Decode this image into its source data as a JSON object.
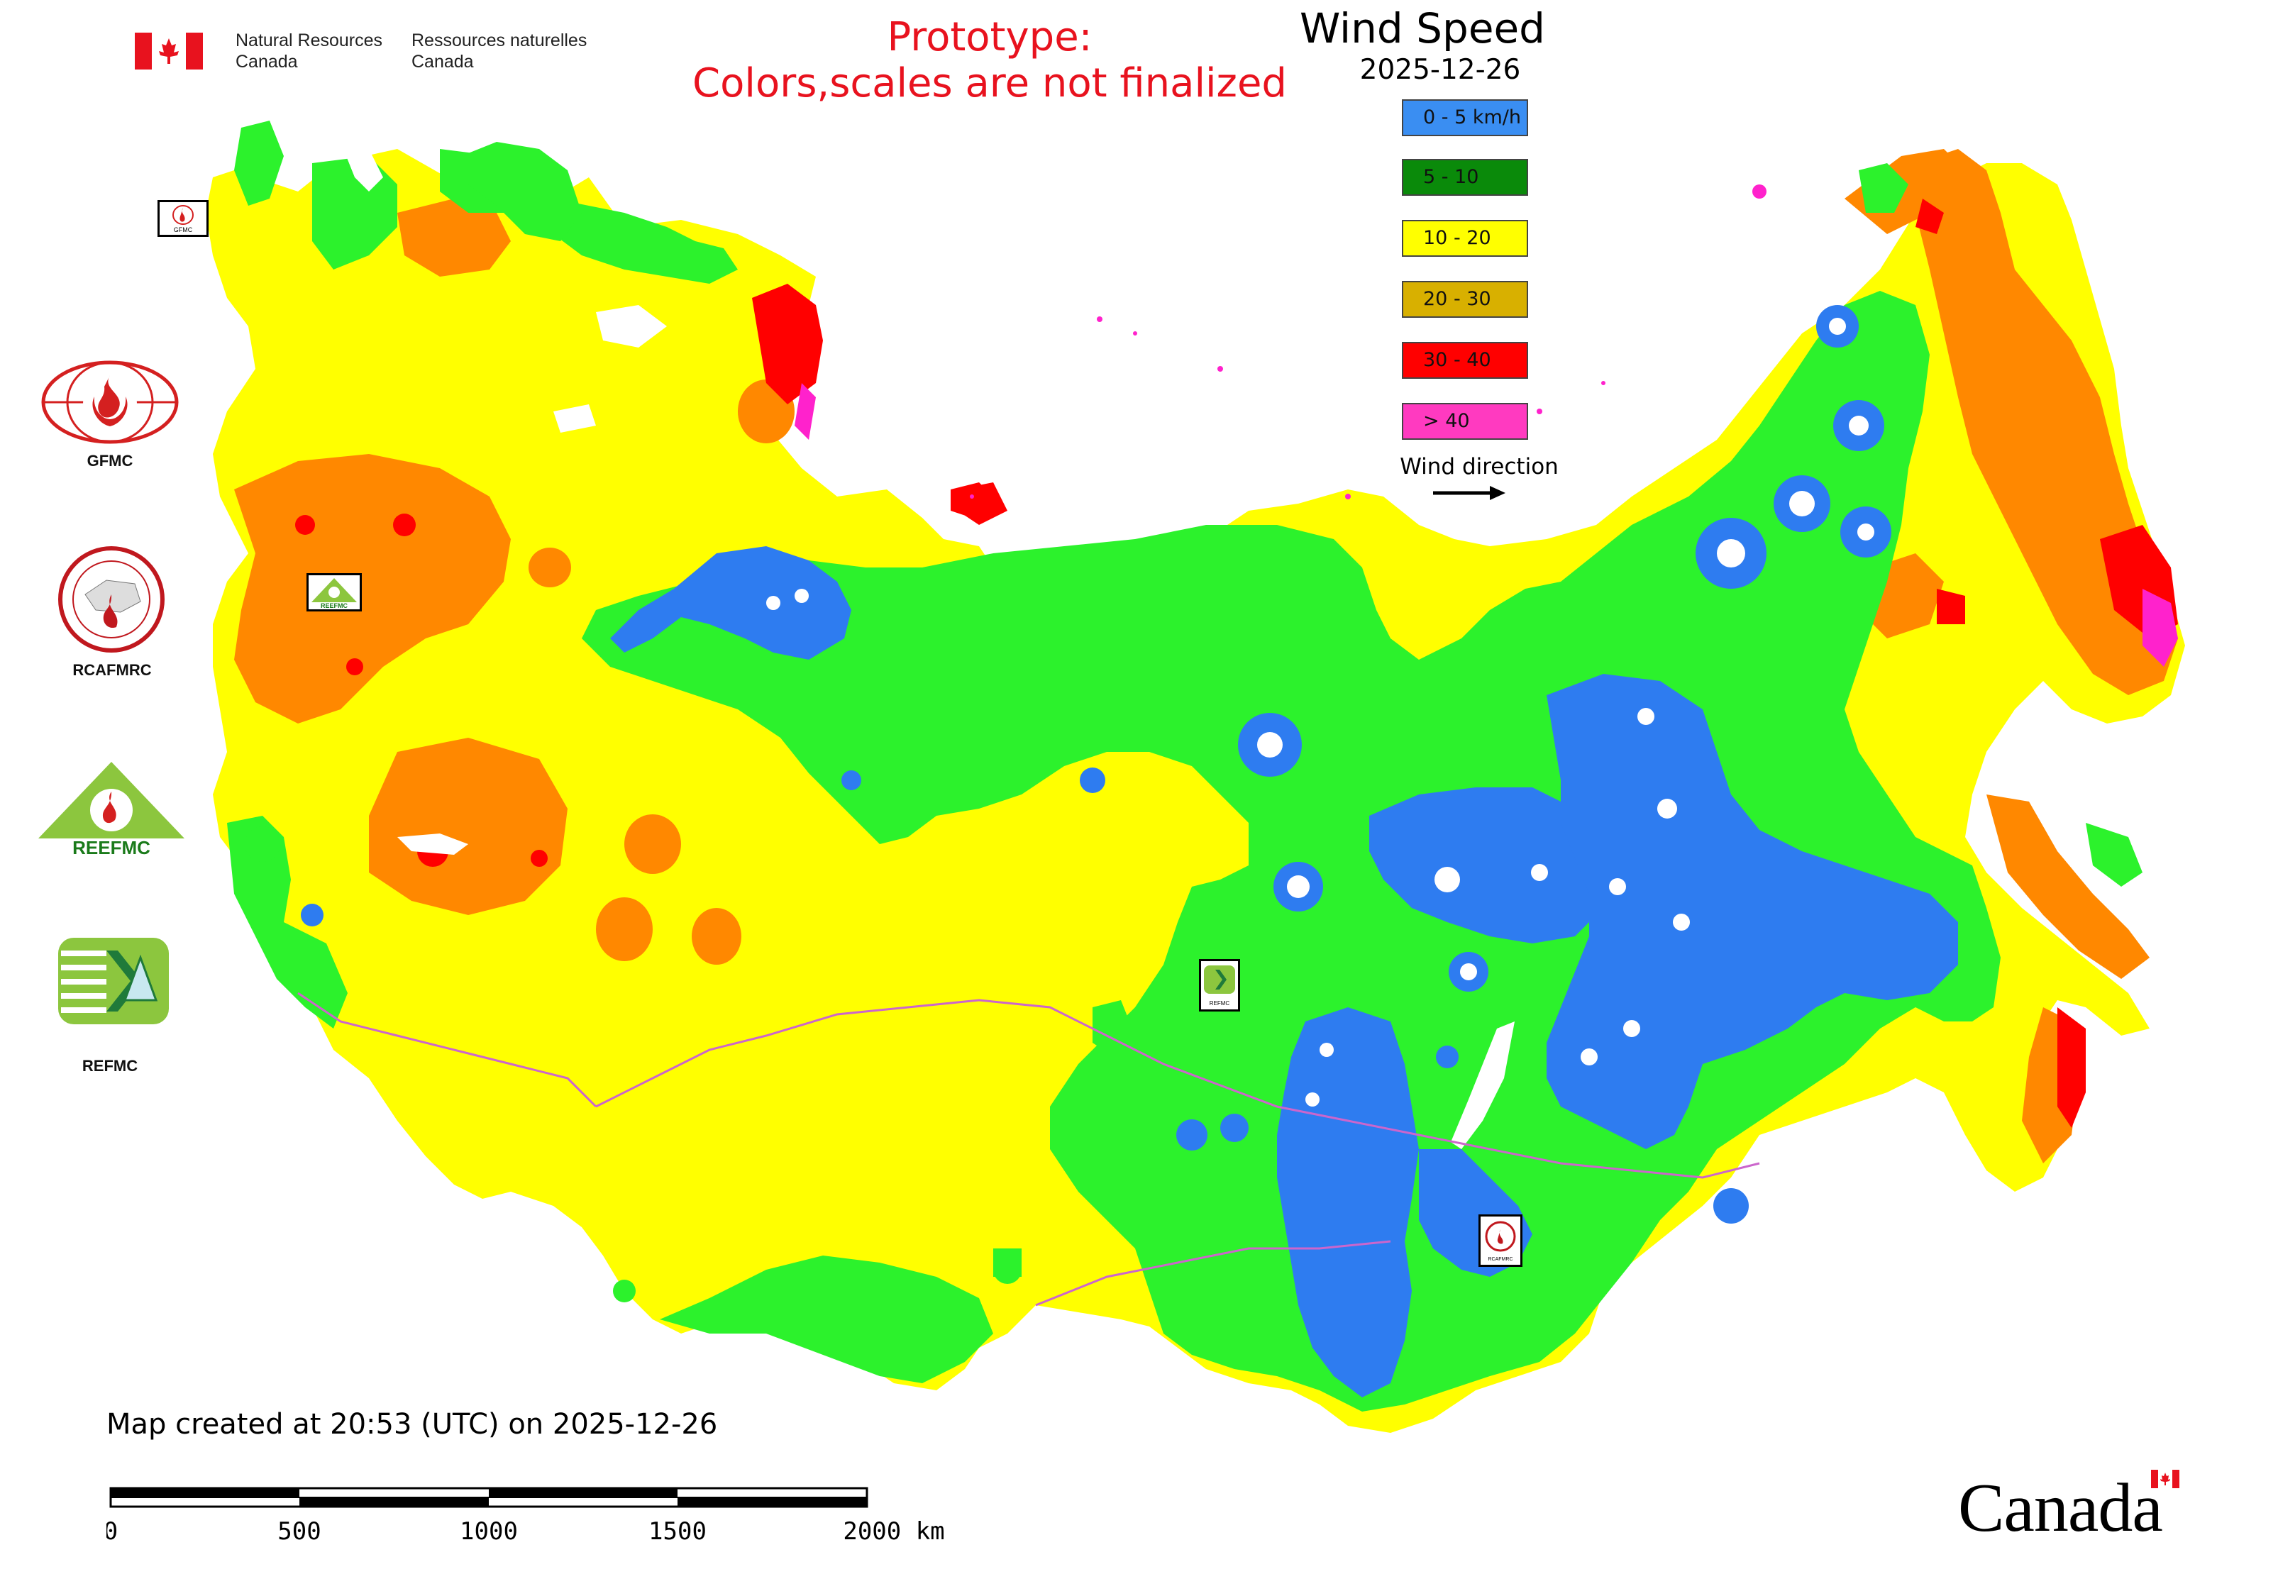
{
  "header": {
    "agency_en_line1": "Natural Resources",
    "agency_en_line2": "Canada",
    "agency_fr_line1": "Ressources naturelles",
    "agency_fr_line2": "Canada",
    "prototype_line1": "Prototype:",
    "prototype_line2": "Colors,scales are not finalized"
  },
  "legend": {
    "title": "Wind Speed",
    "date": "2025-12-26",
    "items": [
      {
        "label": "0 - 5 km/h",
        "color": "#3a8ef2"
      },
      {
        "label": "5 - 10",
        "color": "#0a8a0a"
      },
      {
        "label": "10 - 20",
        "color": "#ffff00"
      },
      {
        "label": "20 - 30",
        "color": "#d8b000"
      },
      {
        "label": "30 - 40",
        "color": "#ff0000"
      },
      {
        "label": "> 40",
        "color": "#ff3ac0"
      }
    ],
    "wind_direction_label": "Wind direction"
  },
  "map_colors": {
    "water": "#ffffff",
    "speed_0_5": "#2e7cf0",
    "speed_5_10": "#2cf22c",
    "speed_10_20": "#ffff00",
    "speed_20_30": "#ff8800",
    "speed_30_40": "#ff0000",
    "speed_gt_40": "#ff22cc",
    "boundary": "#cc66cc"
  },
  "side_logos": [
    {
      "label": "GFMC",
      "icon": "gfmc-logo-icon"
    },
    {
      "label": "RCAFMRC",
      "icon": "rcafmrc-logo-icon"
    },
    {
      "label": "REEFMC",
      "icon": "reefmc-logo-icon"
    },
    {
      "label": "REFMC",
      "icon": "refmc-logo-icon"
    }
  ],
  "map_badges": [
    {
      "label": "GFMC"
    },
    {
      "label": "REEFMC"
    },
    {
      "label": "REFMC"
    },
    {
      "label": "RCAFMRC"
    }
  ],
  "footer": {
    "created": "Map created at 20:53 (UTC) on 2025-12-26",
    "scale_ticks": [
      "0",
      "500",
      "1000",
      "1500",
      "2000 km"
    ],
    "wordmark": "Canada"
  }
}
